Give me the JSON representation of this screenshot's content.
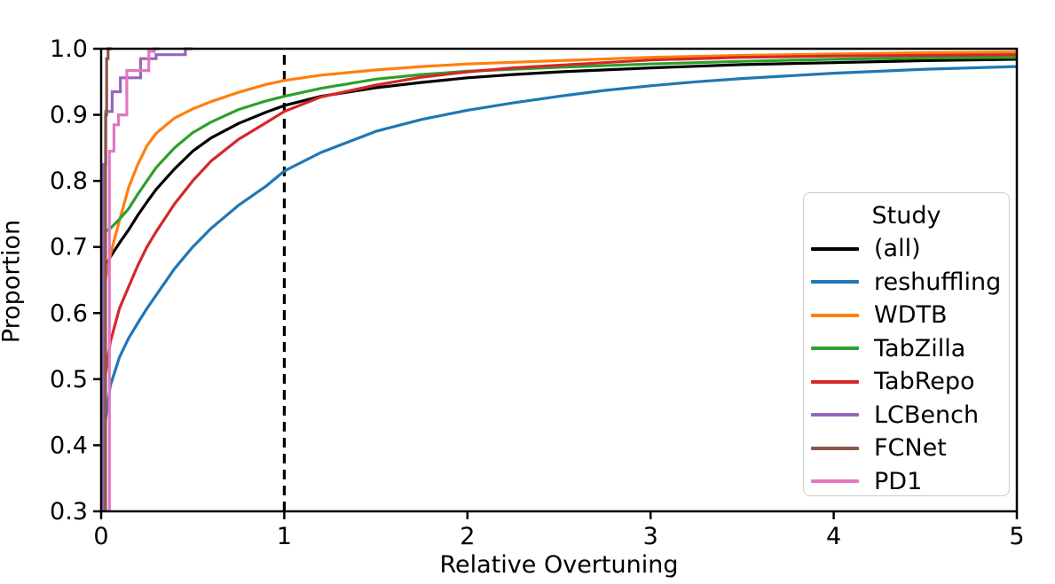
{
  "figure": {
    "background": "#ffffff"
  },
  "chart_data": {
    "type": "line",
    "subtype": "ecdf",
    "title": "",
    "xlabel": "Relative Overtuning",
    "ylabel": "Proportion",
    "xlim": [
      0,
      5
    ],
    "ylim": [
      0.3,
      1.0
    ],
    "xticks": [
      0,
      1,
      2,
      3,
      4,
      5
    ],
    "yticks": [
      0.3,
      0.4,
      0.5,
      0.6,
      0.7,
      0.8,
      0.9,
      1.0
    ],
    "grid": false,
    "legend": {
      "title": "Study",
      "position": "lower right"
    },
    "reference_line": {
      "x": 1.0,
      "style": "dashed",
      "color": "#000000"
    },
    "series": [
      {
        "name": "(all)",
        "color": "#000000",
        "style": "smooth",
        "points": [
          [
            0.004,
            0.3
          ],
          [
            0.004,
            0.655
          ],
          [
            0.02,
            0.666
          ],
          [
            0.05,
            0.685
          ],
          [
            0.1,
            0.706
          ],
          [
            0.15,
            0.726
          ],
          [
            0.2,
            0.748
          ],
          [
            0.25,
            0.768
          ],
          [
            0.3,
            0.787
          ],
          [
            0.4,
            0.818
          ],
          [
            0.5,
            0.845
          ],
          [
            0.6,
            0.865
          ],
          [
            0.75,
            0.887
          ],
          [
            0.9,
            0.904
          ],
          [
            1.0,
            0.914
          ],
          [
            1.2,
            0.928
          ],
          [
            1.5,
            0.941
          ],
          [
            1.75,
            0.949
          ],
          [
            2.0,
            0.956
          ],
          [
            2.25,
            0.961
          ],
          [
            2.5,
            0.965
          ],
          [
            2.75,
            0.968
          ],
          [
            3.0,
            0.971
          ],
          [
            3.5,
            0.976
          ],
          [
            4.0,
            0.979
          ],
          [
            4.5,
            0.982
          ],
          [
            5.0,
            0.984
          ]
        ]
      },
      {
        "name": "reshuffling",
        "color": "#1f77b4",
        "style": "smooth",
        "points": [
          [
            0.004,
            0.3
          ],
          [
            0.004,
            0.36
          ],
          [
            0.02,
            0.43
          ],
          [
            0.05,
            0.49
          ],
          [
            0.1,
            0.533
          ],
          [
            0.15,
            0.562
          ],
          [
            0.2,
            0.585
          ],
          [
            0.25,
            0.607
          ],
          [
            0.3,
            0.627
          ],
          [
            0.4,
            0.667
          ],
          [
            0.5,
            0.7
          ],
          [
            0.6,
            0.728
          ],
          [
            0.75,
            0.763
          ],
          [
            0.9,
            0.792
          ],
          [
            1.0,
            0.815
          ],
          [
            1.2,
            0.843
          ],
          [
            1.5,
            0.875
          ],
          [
            1.75,
            0.893
          ],
          [
            2.0,
            0.907
          ],
          [
            2.25,
            0.918
          ],
          [
            2.5,
            0.928
          ],
          [
            2.75,
            0.937
          ],
          [
            3.0,
            0.944
          ],
          [
            3.25,
            0.95
          ],
          [
            3.5,
            0.955
          ],
          [
            4.0,
            0.963
          ],
          [
            4.5,
            0.969
          ],
          [
            5.0,
            0.973
          ]
        ]
      },
      {
        "name": "WDTB",
        "color": "#ff7f0e",
        "style": "smooth",
        "points": [
          [
            0.004,
            0.3
          ],
          [
            0.004,
            0.625
          ],
          [
            0.02,
            0.645
          ],
          [
            0.05,
            0.688
          ],
          [
            0.1,
            0.74
          ],
          [
            0.15,
            0.79
          ],
          [
            0.2,
            0.825
          ],
          [
            0.25,
            0.853
          ],
          [
            0.3,
            0.872
          ],
          [
            0.4,
            0.895
          ],
          [
            0.5,
            0.909
          ],
          [
            0.6,
            0.92
          ],
          [
            0.75,
            0.934
          ],
          [
            0.9,
            0.946
          ],
          [
            1.0,
            0.952
          ],
          [
            1.2,
            0.96
          ],
          [
            1.5,
            0.968
          ],
          [
            1.75,
            0.973
          ],
          [
            2.0,
            0.977
          ],
          [
            2.5,
            0.982
          ],
          [
            3.0,
            0.987
          ],
          [
            3.5,
            0.99
          ],
          [
            4.0,
            0.992
          ],
          [
            4.5,
            0.994
          ],
          [
            5.0,
            0.995
          ]
        ]
      },
      {
        "name": "TabZilla",
        "color": "#2ca02c",
        "style": "smooth",
        "points": [
          [
            0.004,
            0.3
          ],
          [
            0.004,
            0.72
          ],
          [
            0.05,
            0.728
          ],
          [
            0.1,
            0.742
          ],
          [
            0.15,
            0.758
          ],
          [
            0.2,
            0.78
          ],
          [
            0.25,
            0.8
          ],
          [
            0.3,
            0.82
          ],
          [
            0.4,
            0.85
          ],
          [
            0.5,
            0.873
          ],
          [
            0.6,
            0.889
          ],
          [
            0.75,
            0.908
          ],
          [
            0.9,
            0.921
          ],
          [
            1.0,
            0.928
          ],
          [
            1.2,
            0.94
          ],
          [
            1.5,
            0.954
          ],
          [
            1.75,
            0.961
          ],
          [
            2.0,
            0.966
          ],
          [
            2.5,
            0.972
          ],
          [
            3.0,
            0.977
          ],
          [
            3.5,
            0.981
          ],
          [
            4.0,
            0.984
          ],
          [
            4.5,
            0.986
          ],
          [
            5.0,
            0.987
          ]
        ]
      },
      {
        "name": "TabRepo",
        "color": "#d62728",
        "style": "smooth",
        "points": [
          [
            0.004,
            0.3
          ],
          [
            0.004,
            0.465
          ],
          [
            0.02,
            0.5
          ],
          [
            0.05,
            0.556
          ],
          [
            0.1,
            0.607
          ],
          [
            0.15,
            0.64
          ],
          [
            0.2,
            0.672
          ],
          [
            0.25,
            0.7
          ],
          [
            0.3,
            0.723
          ],
          [
            0.4,
            0.765
          ],
          [
            0.5,
            0.8
          ],
          [
            0.6,
            0.83
          ],
          [
            0.75,
            0.863
          ],
          [
            0.9,
            0.888
          ],
          [
            1.0,
            0.905
          ],
          [
            1.2,
            0.927
          ],
          [
            1.5,
            0.945
          ],
          [
            1.75,
            0.957
          ],
          [
            2.0,
            0.965
          ],
          [
            2.25,
            0.971
          ],
          [
            2.5,
            0.975
          ],
          [
            3.0,
            0.983
          ],
          [
            3.5,
            0.987
          ],
          [
            4.0,
            0.989
          ],
          [
            4.5,
            0.99
          ],
          [
            5.0,
            0.991
          ]
        ]
      },
      {
        "name": "LCBench",
        "color": "#9467bd",
        "style": "step",
        "points": [
          [
            0.01,
            0.3
          ],
          [
            0.01,
            0.825
          ],
          [
            0.025,
            0.825
          ],
          [
            0.025,
            0.905
          ],
          [
            0.06,
            0.905
          ],
          [
            0.06,
            0.935
          ],
          [
            0.105,
            0.935
          ],
          [
            0.105,
            0.956
          ],
          [
            0.215,
            0.956
          ],
          [
            0.215,
            0.985
          ],
          [
            0.3,
            0.985
          ],
          [
            0.3,
            0.991
          ],
          [
            0.46,
            0.991
          ],
          [
            0.46,
            1.0
          ],
          [
            0.5,
            1.0
          ]
        ]
      },
      {
        "name": "FCNet",
        "color": "#8c564b",
        "style": "step",
        "points": [
          [
            0.024,
            0.3
          ],
          [
            0.024,
            0.9
          ],
          [
            0.03,
            0.9
          ],
          [
            0.03,
            0.985
          ],
          [
            0.038,
            0.985
          ],
          [
            0.038,
            1.0
          ],
          [
            0.06,
            1.0
          ]
        ]
      },
      {
        "name": "PD1",
        "color": "#e377c2",
        "style": "step",
        "points": [
          [
            0.045,
            0.3
          ],
          [
            0.045,
            0.845
          ],
          [
            0.07,
            0.845
          ],
          [
            0.07,
            0.885
          ],
          [
            0.095,
            0.885
          ],
          [
            0.095,
            0.9
          ],
          [
            0.14,
            0.9
          ],
          [
            0.14,
            0.967
          ],
          [
            0.26,
            0.967
          ],
          [
            0.26,
            0.996
          ],
          [
            0.29,
            0.996
          ],
          [
            0.29,
            1.0
          ],
          [
            0.32,
            1.0
          ]
        ]
      }
    ]
  }
}
